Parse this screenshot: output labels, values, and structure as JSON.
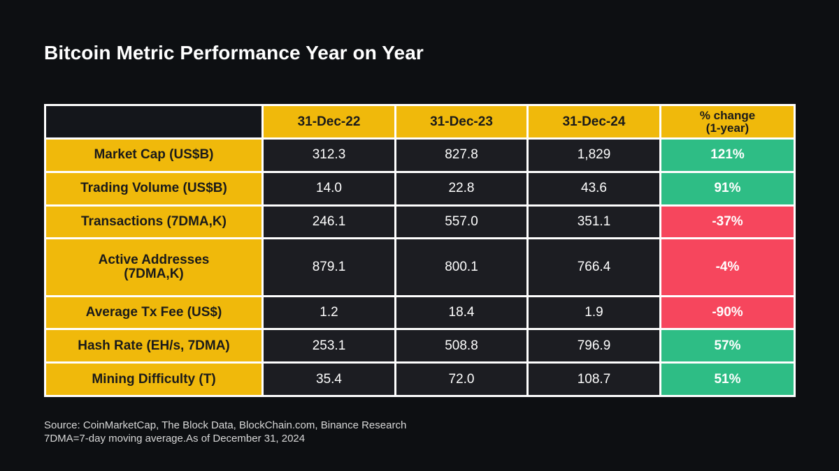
{
  "title": "Bitcoin Metric Performance Year on Year",
  "colors": {
    "background": "#0d0f12",
    "header_yellow": "#f0b90b",
    "cell_dark": "#1c1d22",
    "positive_green": "#2ebd85",
    "negative_red": "#f6465d"
  },
  "chart_data": {
    "type": "table",
    "title": "Bitcoin Metric Performance Year on Year",
    "columns": [
      "31-Dec-22",
      "31-Dec-23",
      "31-Dec-24"
    ],
    "change_header": [
      "% change",
      "(1-year)"
    ],
    "rows": [
      {
        "label": [
          "Market Cap (US$B)"
        ],
        "values": [
          "312.3",
          "827.8",
          "1,829"
        ],
        "change": "121%",
        "direction": "positive"
      },
      {
        "label": [
          "Trading Volume (US$B)"
        ],
        "values": [
          "14.0",
          "22.8",
          "43.6"
        ],
        "change": "91%",
        "direction": "positive"
      },
      {
        "label": [
          "Transactions (7DMA,K)"
        ],
        "values": [
          "246.1",
          "557.0",
          "351.1"
        ],
        "change": "-37%",
        "direction": "negative"
      },
      {
        "label": [
          "Active Addresses",
          "(7DMA,K)"
        ],
        "values": [
          "879.1",
          "800.1",
          "766.4"
        ],
        "change": "-4%",
        "direction": "negative"
      },
      {
        "label": [
          "Average Tx Fee (US$)"
        ],
        "values": [
          "1.2",
          "18.4",
          "1.9"
        ],
        "change": "-90%",
        "direction": "negative"
      },
      {
        "label": [
          "Hash Rate (EH/s, 7DMA)"
        ],
        "values": [
          "253.1",
          "508.8",
          "796.9"
        ],
        "change": "57%",
        "direction": "positive"
      },
      {
        "label": [
          "Mining Difficulty (T)"
        ],
        "values": [
          "35.4",
          "72.0",
          "108.7"
        ],
        "change": "51%",
        "direction": "positive"
      }
    ]
  },
  "footer": {
    "source": "Source: CoinMarketCap, The Block Data, BlockChain.com, Binance Research",
    "note": "7DMA=7-day moving average.As of December 31, 2024"
  }
}
